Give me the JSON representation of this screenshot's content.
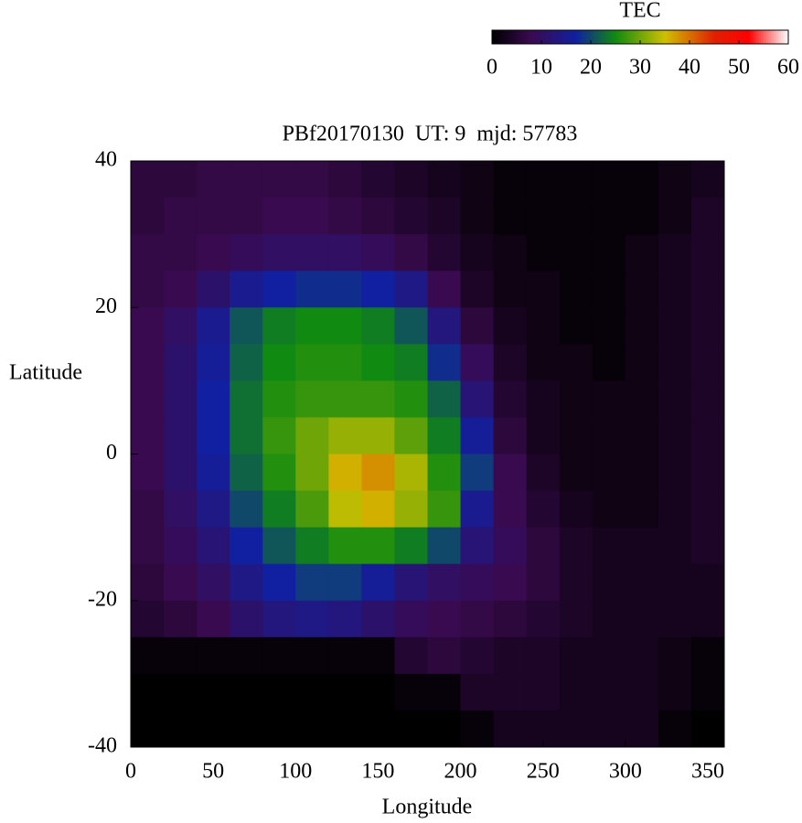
{
  "chart_data": {
    "type": "heatmap",
    "title": "PBf20170130  UT: 9  mjd: 57783",
    "xlabel": "Longitude",
    "ylabel": "Latitude",
    "colorbar_label": "TEC",
    "x": [
      10,
      30,
      50,
      70,
      90,
      110,
      130,
      150,
      170,
      190,
      210,
      230,
      250,
      270,
      290,
      310,
      330,
      350
    ],
    "y": [
      37.5,
      32.5,
      27.5,
      22.5,
      17.5,
      12.5,
      7.5,
      2.5,
      -2.5,
      -7.5,
      -12.5,
      -17.5,
      -22.5,
      -27.5,
      -32.5,
      -37.5
    ],
    "z": [
      [
        6,
        6,
        7,
        7,
        7,
        7,
        6,
        5,
        4,
        3,
        2,
        1,
        1,
        1,
        1,
        1,
        2,
        3
      ],
      [
        6,
        7,
        7,
        7,
        8,
        8,
        7,
        6,
        5,
        4,
        2,
        1,
        1,
        1,
        1,
        1,
        2,
        4
      ],
      [
        7,
        7,
        8,
        9,
        10,
        10,
        10,
        9,
        7,
        5,
        3,
        2,
        1,
        1,
        1,
        2,
        3,
        4
      ],
      [
        7,
        8,
        11,
        15,
        17,
        18,
        18,
        17,
        14,
        8,
        4,
        2,
        2,
        1,
        1,
        2,
        3,
        4
      ],
      [
        8,
        10,
        15,
        21,
        24,
        25,
        25,
        24,
        21,
        13,
        6,
        3,
        2,
        1,
        1,
        2,
        3,
        4
      ],
      [
        8,
        11,
        16,
        22,
        25,
        26,
        26,
        25,
        24,
        18,
        9,
        4,
        2,
        2,
        1,
        2,
        3,
        4
      ],
      [
        8,
        11,
        17,
        23,
        26,
        27,
        27,
        27,
        26,
        22,
        12,
        5,
        3,
        2,
        2,
        2,
        3,
        4
      ],
      [
        8,
        11,
        17,
        23,
        27,
        30,
        32,
        32,
        29,
        24,
        16,
        6,
        3,
        2,
        2,
        2,
        3,
        4
      ],
      [
        8,
        11,
        16,
        22,
        26,
        30,
        36,
        38,
        33,
        26,
        19,
        8,
        4,
        2,
        2,
        2,
        3,
        4
      ],
      [
        7,
        10,
        14,
        20,
        24,
        28,
        34,
        36,
        32,
        27,
        15,
        8,
        5,
        3,
        2,
        2,
        3,
        4
      ],
      [
        7,
        9,
        12,
        17,
        21,
        24,
        26,
        26,
        24,
        20,
        12,
        9,
        6,
        4,
        3,
        3,
        3,
        4
      ],
      [
        6,
        8,
        10,
        14,
        17,
        19,
        19,
        16,
        12,
        10,
        9,
        8,
        6,
        4,
        3,
        3,
        3,
        3
      ],
      [
        5,
        6,
        8,
        11,
        13,
        14,
        13,
        11,
        9,
        8,
        7,
        6,
        5,
        4,
        3,
        3,
        3,
        3
      ],
      [
        1,
        1,
        1,
        1,
        1,
        1,
        1,
        1,
        5,
        6,
        5,
        4,
        4,
        3,
        3,
        3,
        2,
        1
      ],
      [
        0,
        0,
        0,
        0,
        0,
        0,
        0,
        0,
        1,
        1,
        4,
        4,
        4,
        3,
        3,
        3,
        2,
        1
      ],
      [
        0,
        0,
        0,
        0,
        0,
        0,
        0,
        0,
        0,
        0,
        1,
        3,
        3,
        3,
        3,
        3,
        1,
        0
      ]
    ],
    "xlim": [
      0,
      360
    ],
    "xticks": [
      0,
      50,
      100,
      150,
      200,
      250,
      300,
      350
    ],
    "ylim": [
      -40,
      40
    ],
    "yticks": [
      -40,
      -20,
      0,
      20,
      40
    ],
    "zlim": [
      0,
      60
    ],
    "zticks": [
      0,
      10,
      20,
      30,
      40,
      50,
      60
    ],
    "colorscale": [
      [
        0,
        "#000000"
      ],
      [
        8,
        "#3a0a50"
      ],
      [
        17,
        "#1020a0"
      ],
      [
        25,
        "#108a10"
      ],
      [
        35,
        "#d0c000"
      ],
      [
        45,
        "#e02000"
      ],
      [
        52,
        "#ff0000"
      ],
      [
        60,
        "#ffffff"
      ]
    ]
  }
}
